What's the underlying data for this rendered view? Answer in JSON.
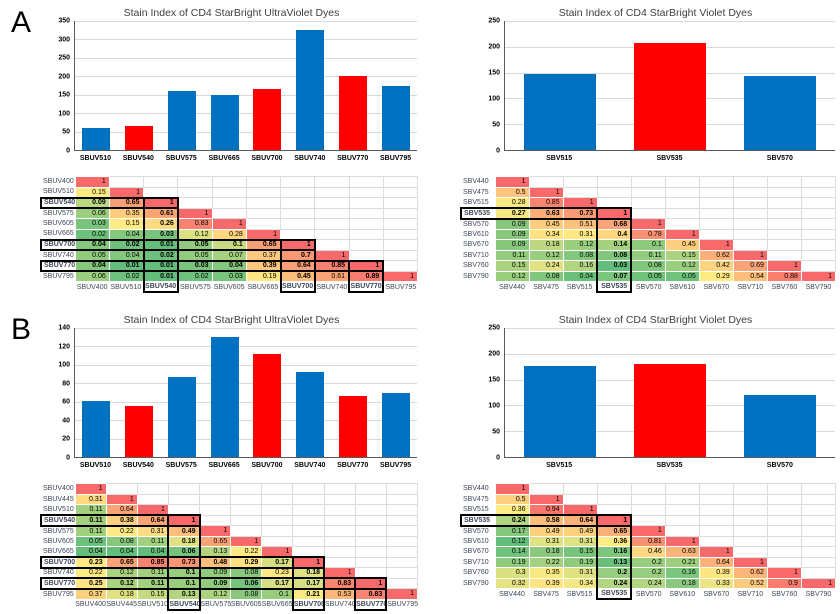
{
  "panels": [
    {
      "label": "A"
    },
    {
      "label": "B"
    }
  ],
  "colors": {
    "bar_blue": "#0070C0",
    "bar_red": "#FF0000",
    "heat_low": "#63BE7B",
    "heat_mid": "#FFEB84",
    "heat_high": "#F8696B",
    "grid_line": "#D9D9D9",
    "axis_line": "#595959",
    "highlight_border": "#000000"
  },
  "chart_data": [
    {
      "type": "bar",
      "panel": "A",
      "title": "Stain Index of CD4 StarBright UltraViolet Dyes",
      "categories": [
        "SBUV510",
        "SBUV540",
        "SBUV575",
        "SBUV665",
        "SBUV700",
        "SBUV740",
        "SBUV770",
        "SBUV795"
      ],
      "values": [
        60,
        66,
        160,
        149,
        165,
        326,
        201,
        173
      ],
      "bar_colors": [
        "blue",
        "red",
        "blue",
        "blue",
        "red",
        "blue",
        "red",
        "blue"
      ],
      "ylabel": "",
      "xlabel": "",
      "ylim": [
        0,
        350
      ],
      "ystep": 50,
      "grid": true
    },
    {
      "type": "bar",
      "panel": "A",
      "title": "Stain Index of CD4 StarBright Violet Dyes",
      "categories": [
        "SBV515",
        "SBV535",
        "SBV570"
      ],
      "values": [
        148,
        208,
        143
      ],
      "bar_colors": [
        "blue",
        "red",
        "blue"
      ],
      "ylabel": "",
      "xlabel": "",
      "ylim": [
        0,
        250
      ],
      "ystep": 50,
      "grid": true
    },
    {
      "type": "heatmap",
      "panel": "A",
      "title": "Spillover matrix of StarBright UltraViolet dyes",
      "labels": [
        "SBUV400",
        "SBUV510",
        "SBUV540",
        "SBUV575",
        "SBUV605",
        "SBUV665",
        "SBUV700",
        "SBUV740",
        "SBUV770",
        "SBUV795"
      ],
      "highlighted": [
        "SBUV540",
        "SBUV700",
        "SBUV770"
      ],
      "rows": [
        [
          1
        ],
        [
          0.15,
          1
        ],
        [
          0.09,
          0.65,
          1
        ],
        [
          0.06,
          0.35,
          0.61,
          1
        ],
        [
          0.03,
          0.15,
          0.26,
          0.83,
          1
        ],
        [
          0.02,
          0.04,
          0.03,
          0.12,
          0.28,
          1
        ],
        [
          0.04,
          0.02,
          0.01,
          0.05,
          0.1,
          0.65,
          1
        ],
        [
          0.05,
          0.04,
          0.02,
          0.05,
          0.07,
          0.37,
          0.7,
          1
        ],
        [
          0.04,
          0.01,
          0.01,
          0.03,
          0.04,
          0.39,
          0.64,
          0.85,
          1
        ],
        [
          0.06,
          0.02,
          0.01,
          0.02,
          0.03,
          0.19,
          0.45,
          0.61,
          0.89,
          1
        ]
      ]
    },
    {
      "type": "heatmap",
      "panel": "A",
      "title": "Spillover matrix of StarBright Violet dyes",
      "labels": [
        "SBV440",
        "SBV475",
        "SBV515",
        "SBV535",
        "SBV570",
        "SBV610",
        "SBV670",
        "SBV710",
        "SBV760",
        "SBV790"
      ],
      "highlighted": [
        "SBV535"
      ],
      "rows": [
        [
          1
        ],
        [
          0.5,
          1
        ],
        [
          0.28,
          0.85,
          1
        ],
        [
          0.27,
          0.63,
          0.73,
          1
        ],
        [
          0.09,
          0.45,
          0.51,
          0.68,
          1
        ],
        [
          0.09,
          0.34,
          0.31,
          0.4,
          0.78,
          1
        ],
        [
          0.09,
          0.18,
          0.12,
          0.14,
          0.1,
          0.45,
          1
        ],
        [
          0.11,
          0.12,
          0.08,
          0.08,
          0.11,
          0.15,
          0.62,
          1
        ],
        [
          0.15,
          0.24,
          0.16,
          0.03,
          0.08,
          0.12,
          0.42,
          0.69,
          1
        ],
        [
          0.12,
          0.08,
          0.04,
          0.07,
          0.05,
          0.05,
          0.29,
          0.54,
          0.88,
          1
        ]
      ]
    },
    {
      "type": "bar",
      "panel": "B",
      "title": "Stain Index of CD4 StarBright UltraViolet Dyes",
      "categories": [
        "SBUV510",
        "SBUV540",
        "SBUV575",
        "SBUV665",
        "SBUV700",
        "SBUV740",
        "SBUV770",
        "SBUV795"
      ],
      "values": [
        61,
        55,
        87,
        130,
        112,
        92,
        66,
        70
      ],
      "bar_colors": [
        "blue",
        "red",
        "blue",
        "blue",
        "red",
        "blue",
        "red",
        "blue"
      ],
      "ylabel": "",
      "xlabel": "",
      "ylim": [
        0,
        140
      ],
      "ystep": 20,
      "grid": true
    },
    {
      "type": "bar",
      "panel": "B",
      "title": "Stain Index of CD4 StarBright Violet Dyes",
      "categories": [
        "SBV515",
        "SBV535",
        "SBV570"
      ],
      "values": [
        176,
        181,
        121
      ],
      "bar_colors": [
        "blue",
        "red",
        "blue"
      ],
      "ylabel": "",
      "xlabel": "",
      "ylim": [
        0,
        250
      ],
      "ystep": 50,
      "grid": true
    },
    {
      "type": "heatmap",
      "panel": "B",
      "title": "Spillover matrix of StarBright UltraViolet dyes",
      "labels": [
        "SBUV400",
        "SBUV445",
        "SBUV510",
        "SBUV540",
        "SBUV575",
        "SBUV605",
        "SBUV665",
        "SBUV700",
        "SBUV740",
        "SBUV770",
        "SBUV795"
      ],
      "highlighted": [
        "SBUV540",
        "SBUV700",
        "SBUV770"
      ],
      "rows": [
        [
          1
        ],
        [
          0.31,
          1
        ],
        [
          0.11,
          0.64,
          1
        ],
        [
          0.11,
          0.38,
          0.64,
          1
        ],
        [
          0.11,
          0.22,
          0.31,
          0.49,
          1
        ],
        [
          0.05,
          0.08,
          0.11,
          0.18,
          0.65,
          1
        ],
        [
          0.04,
          0.04,
          0.04,
          0.06,
          0.13,
          0.22,
          1
        ],
        [
          0.23,
          0.65,
          0.85,
          0.73,
          0.48,
          0.29,
          0.17,
          1
        ],
        [
          0.22,
          0.12,
          0.11,
          0.1,
          0.09,
          0.08,
          0.23,
          0.18,
          1
        ],
        [
          0.25,
          0.12,
          0.11,
          0.1,
          0.09,
          0.06,
          0.17,
          0.17,
          0.83,
          1
        ],
        [
          0.37,
          0.18,
          0.15,
          0.13,
          0.12,
          0.08,
          0.1,
          0.21,
          0.53,
          0.83,
          1
        ]
      ]
    },
    {
      "type": "heatmap",
      "panel": "B",
      "title": "Spillover matrix of StarBright Violet dyes",
      "labels": [
        "SBV440",
        "SBV475",
        "SBV515",
        "SBV535",
        "SBV570",
        "SBV610",
        "SBV670",
        "SBV710",
        "SBV760",
        "SBV790"
      ],
      "highlighted": [
        "SBV535"
      ],
      "rows": [
        [
          1
        ],
        [
          0.5,
          1
        ],
        [
          0.36,
          0.94,
          1
        ],
        [
          0.24,
          0.58,
          0.64,
          1
        ],
        [
          0.17,
          0.49,
          0.49,
          0.65,
          1
        ],
        [
          0.12,
          0.31,
          0.31,
          0.36,
          0.81,
          1
        ],
        [
          0.14,
          0.18,
          0.15,
          0.16,
          0.46,
          0.63,
          1
        ],
        [
          0.19,
          0.22,
          0.19,
          0.13,
          0.2,
          0.21,
          0.64,
          1
        ],
        [
          0.3,
          0.35,
          0.31,
          0.2,
          0.2,
          0.16,
          0.39,
          0.62,
          1
        ],
        [
          0.32,
          0.39,
          0.34,
          0.24,
          0.24,
          0.18,
          0.33,
          0.52,
          0.9,
          1
        ]
      ]
    }
  ]
}
